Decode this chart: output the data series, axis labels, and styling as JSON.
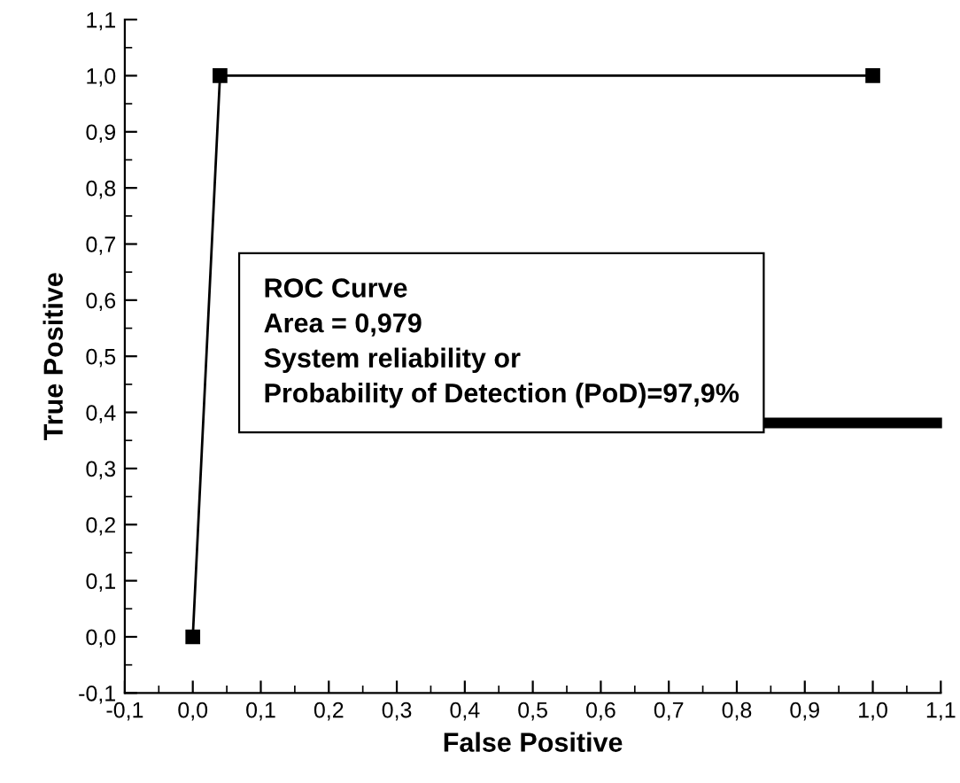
{
  "chart_data": {
    "type": "line",
    "xlabel": "False Positive",
    "ylabel": "True Positive",
    "x": [
      0.0,
      0.04,
      1.0
    ],
    "series": [
      {
        "color": "#000000",
        "values": [
          0.0,
          1.0,
          1.0
        ]
      }
    ],
    "marker": "square",
    "line_style": "solid",
    "grid": false,
    "legend": false,
    "xlim": [
      -0.1,
      1.1
    ],
    "ylim": [
      -0.1,
      1.1
    ],
    "xticks": [
      {
        "value": -0.1,
        "label": "-0,1"
      },
      {
        "value": 0.0,
        "label": "0,0"
      },
      {
        "value": 0.1,
        "label": "0,1"
      },
      {
        "value": 0.2,
        "label": "0,2"
      },
      {
        "value": 0.3,
        "label": "0,3"
      },
      {
        "value": 0.4,
        "label": "0,4"
      },
      {
        "value": 0.5,
        "label": "0,5"
      },
      {
        "value": 0.6,
        "label": "0,6"
      },
      {
        "value": 0.7,
        "label": "0,7"
      },
      {
        "value": 0.8,
        "label": "0,8"
      },
      {
        "value": 0.9,
        "label": "0,9"
      },
      {
        "value": 1.0,
        "label": "1,0"
      },
      {
        "value": 1.1,
        "label": "1,1"
      }
    ],
    "yticks": [
      {
        "value": -0.1,
        "label": "-0,1"
      },
      {
        "value": 0.0,
        "label": "0,0"
      },
      {
        "value": 0.1,
        "label": "0,1"
      },
      {
        "value": 0.2,
        "label": "0,2"
      },
      {
        "value": 0.3,
        "label": "0,3"
      },
      {
        "value": 0.4,
        "label": "0,4"
      },
      {
        "value": 0.5,
        "label": "0,5"
      },
      {
        "value": 0.6,
        "label": "0,6"
      },
      {
        "value": 0.7,
        "label": "0,7"
      },
      {
        "value": 0.8,
        "label": "0,8"
      },
      {
        "value": 0.9,
        "label": "0,9"
      },
      {
        "value": 1.0,
        "label": "1,0"
      },
      {
        "value": 1.1,
        "label": "1,1"
      }
    ],
    "annotations": [
      "ROC Curve\nArea = 0,979\nSystem reliability or\nProbability of Detection (PoD)=97,9%"
    ]
  }
}
